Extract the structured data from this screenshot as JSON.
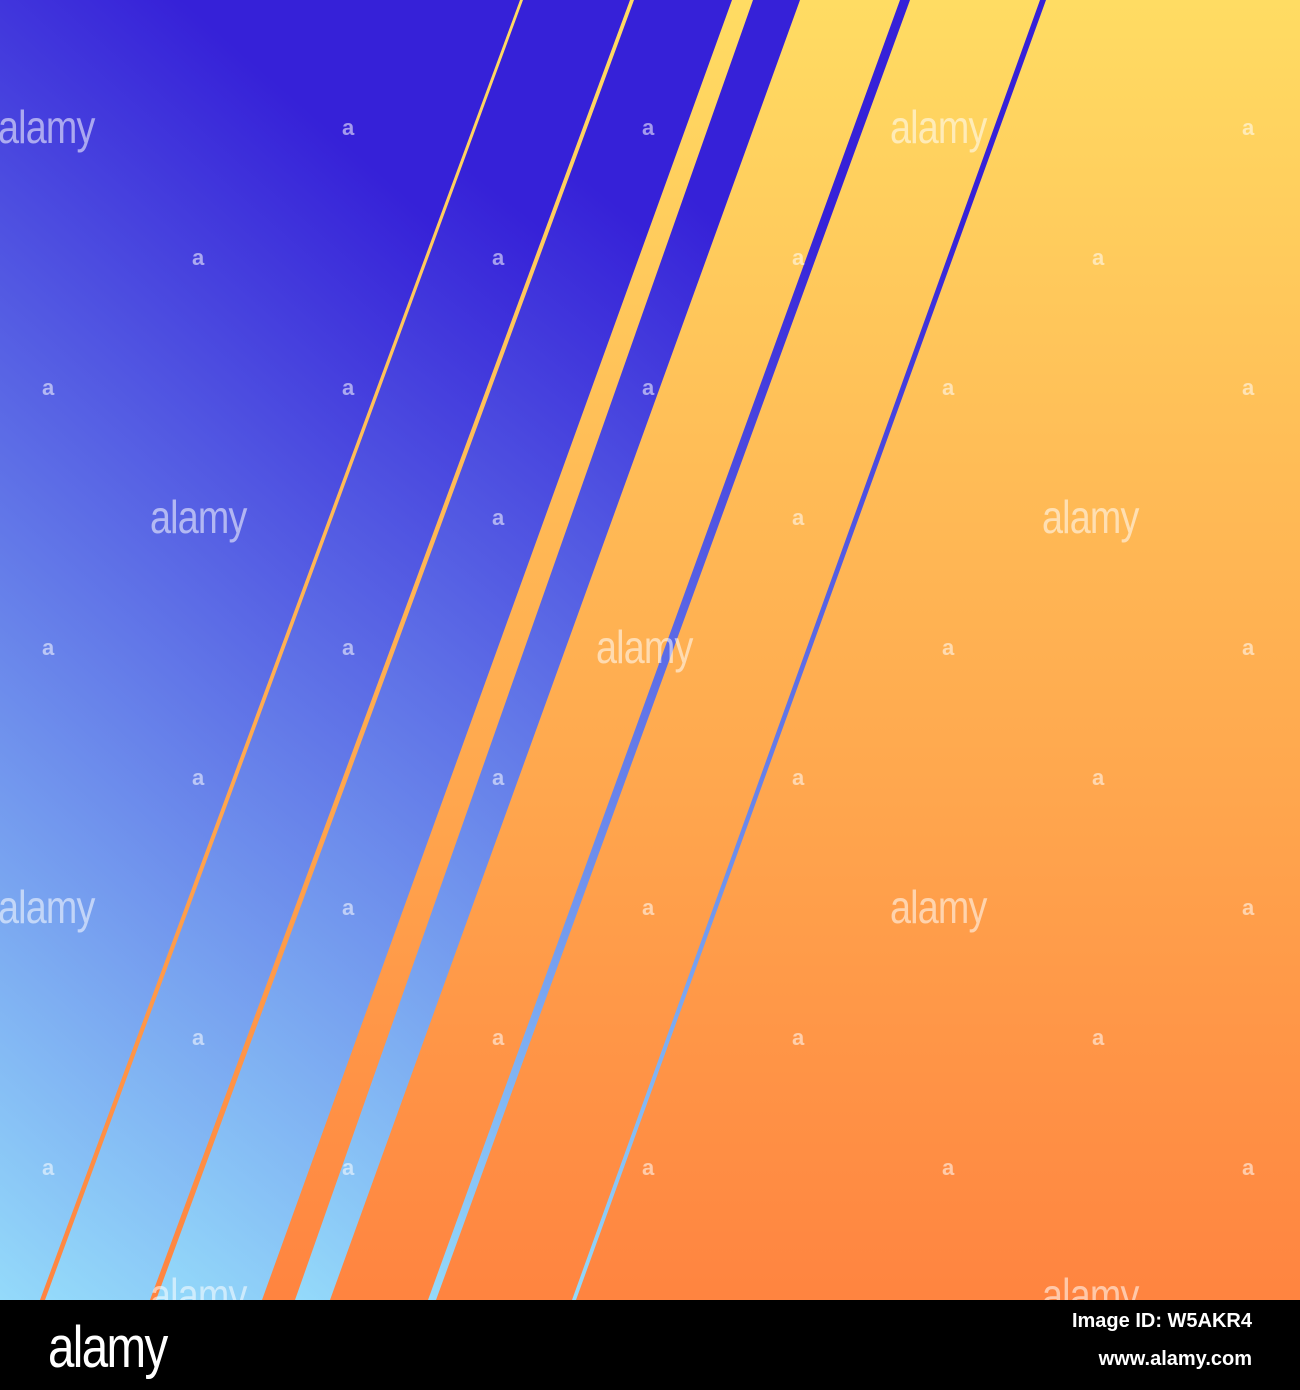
{
  "colors": {
    "blue_top": "#3621d8",
    "blue_bottom": "#94dafa",
    "yellow_top": "#ffdc63",
    "orange_bottom": "#ff8440",
    "footer_bg": "#000000"
  },
  "watermark": {
    "word": "alamy",
    "letter": "a"
  },
  "footer": {
    "logo": "alamy",
    "image_id": "Image ID: W5AKR4",
    "url": "www.alamy.com"
  }
}
